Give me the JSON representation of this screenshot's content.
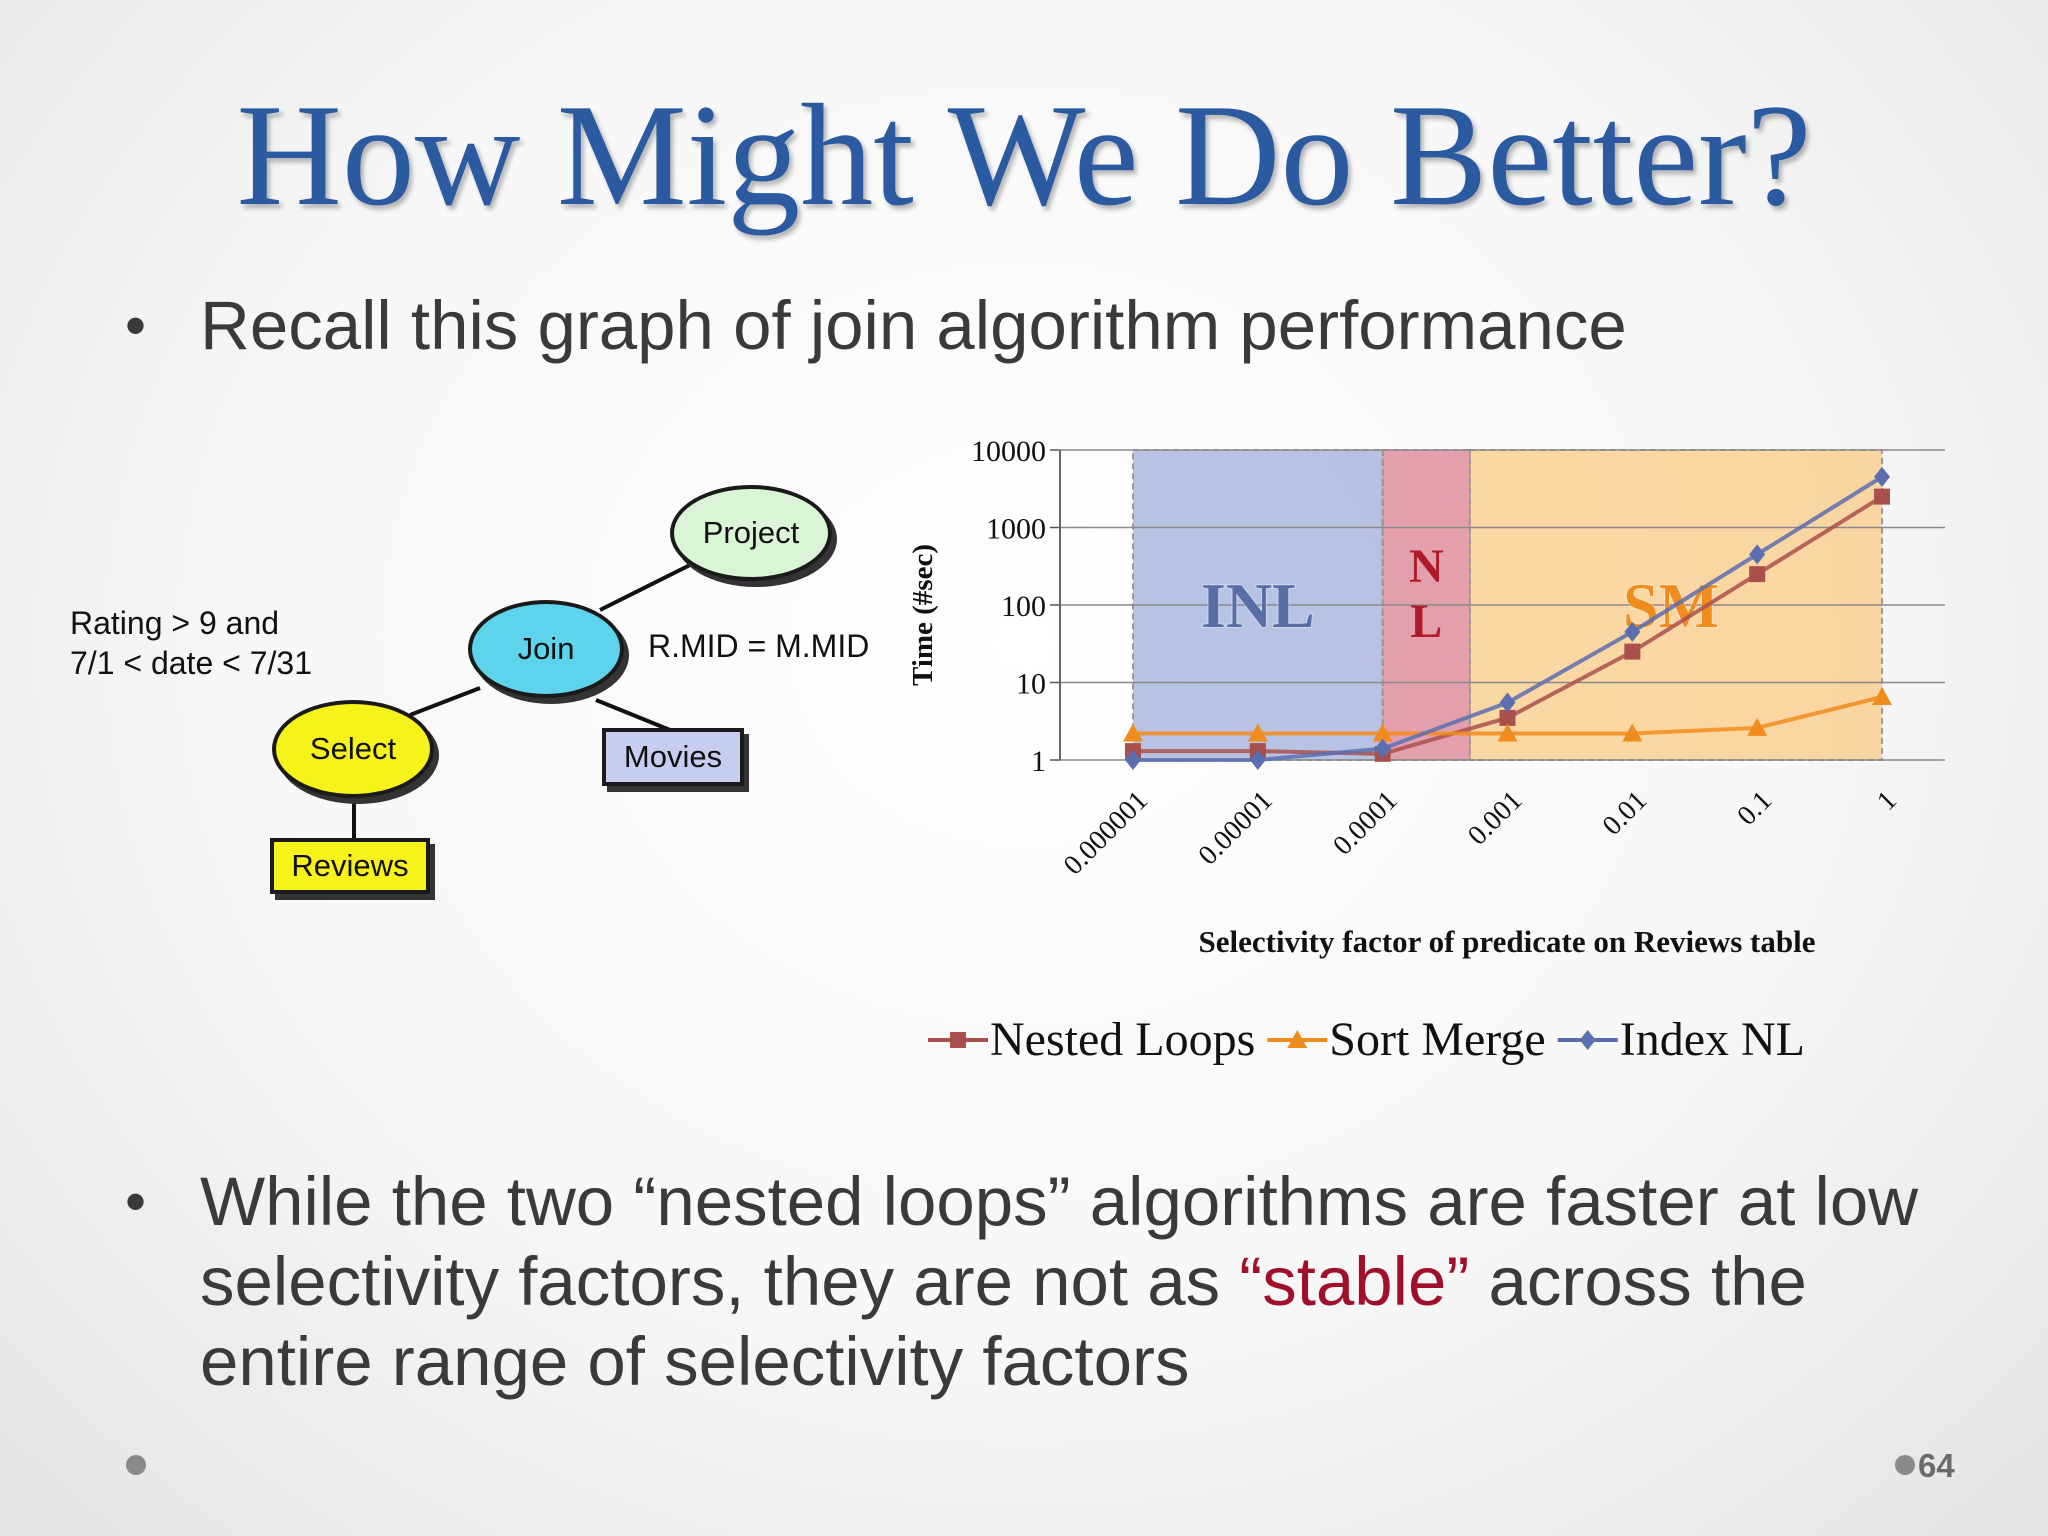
{
  "slide": {
    "title": "How Might We Do Better?",
    "bullet1": "Recall this graph of join algorithm performance",
    "bullet2_part1": "While the two “nested loops” algorithms are faster at low selectivity factors,  they are not as ",
    "bullet2_highlight": "“stable”",
    "bullet2_part2": " across the entire range of selectivity factors",
    "bullet_symbol": "•",
    "page_number": "64"
  },
  "plan_diagram": {
    "project_label": "Project",
    "join_label": "Join",
    "select_label": "Select",
    "reviews_label": "Reviews",
    "movies_label": "Movies",
    "join_condition": "R.MID = M.MID",
    "select_condition_line1": "Rating > 9 and",
    "select_condition_line2": "7/1 < date < 7/31"
  },
  "chart_data": {
    "type": "line",
    "title": "",
    "xlabel": "Selectivity factor of predicate on Reviews table",
    "ylabel": "Time (#sec)",
    "x_scale": "log",
    "y_scale": "log",
    "categories": [
      "0.000001",
      "0.00001",
      "0.0001",
      "0.001",
      "0.01",
      "0.1",
      "1"
    ],
    "y_ticks": [
      "1",
      "10",
      "100",
      "1000",
      "10000"
    ],
    "ylim": [
      1,
      10000
    ],
    "grid": true,
    "legend_position": "bottom",
    "series": [
      {
        "name": "Nested Loops",
        "color": "#a9504d",
        "marker": "square",
        "values": [
          1.3,
          1.3,
          1.2,
          3.5,
          25,
          250,
          2500
        ]
      },
      {
        "name": "Sort Merge",
        "color": "#f08c1e",
        "marker": "triangle",
        "values": [
          2.2,
          2.2,
          2.2,
          2.2,
          2.2,
          2.6,
          6.5
        ]
      },
      {
        "name": "Index NL",
        "color": "#5b6fb0",
        "marker": "diamond",
        "values": [
          1.0,
          1.0,
          1.4,
          5.5,
          45,
          450,
          4500
        ]
      }
    ],
    "regions": [
      {
        "label": "INL",
        "from": 1e-06,
        "to": 0.0001,
        "color": "#8b9bd0",
        "text_color": "#5a6ea6"
      },
      {
        "label": "N L",
        "from": 0.0001,
        "to": 0.0005,
        "color": "#d5627a",
        "text_color": "#b01a2a"
      },
      {
        "label": "SM",
        "from": 0.0005,
        "to": 1,
        "color": "#fbc06a",
        "text_color": "#f08c1e"
      }
    ]
  }
}
